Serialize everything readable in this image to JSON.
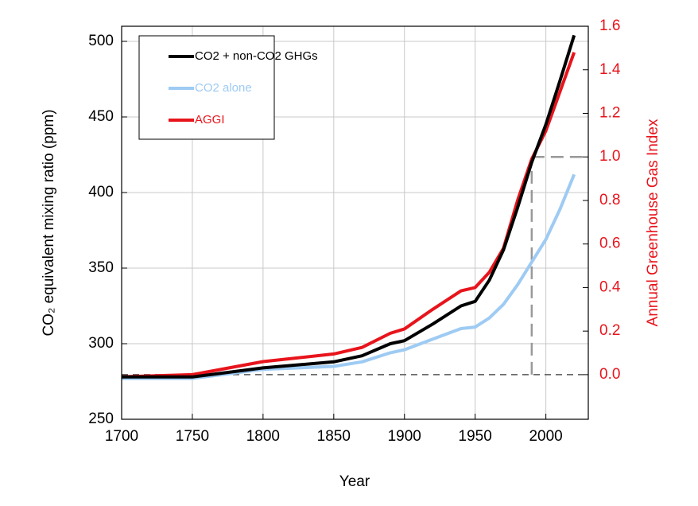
{
  "chart_data": {
    "type": "line",
    "xlabel": "Year",
    "ylabel": "CO₂ equivalent mixing ratio (ppm)",
    "y2label": "Annual Greenhouse Gas Index",
    "x": [
      1700,
      1750,
      1800,
      1850,
      1870,
      1890,
      1900,
      1920,
      1940,
      1950,
      1960,
      1970,
      1980,
      1990,
      2000,
      2010,
      2020
    ],
    "series": [
      {
        "name": "CO2 + non-CO2 GHGs",
        "color": "#000000",
        "values": [
          278,
          278,
          284,
          288,
          292,
          300,
          302,
          313,
          325,
          328,
          342,
          362,
          390,
          420,
          445,
          474,
          504
        ]
      },
      {
        "name": "CO2 alone",
        "color": "#9ecbf3",
        "values": [
          277,
          277,
          283,
          285,
          288,
          294,
          296,
          303,
          310,
          311,
          317,
          326,
          339,
          354,
          369,
          389,
          412
        ]
      },
      {
        "name": "AGGI",
        "color": "#e8141c",
        "axis": "y2",
        "values": [
          -0.01,
          0.0,
          0.06,
          0.095,
          0.125,
          0.19,
          0.21,
          0.3,
          0.385,
          0.4,
          0.47,
          0.58,
          0.8,
          0.99,
          1.12,
          1.3,
          1.48
        ]
      }
    ],
    "xlim": [
      1700,
      2030
    ],
    "xticks": [
      1700,
      1750,
      1800,
      1850,
      1900,
      1950,
      2000
    ],
    "ylim": [
      250,
      510
    ],
    "yticks": [
      250,
      300,
      350,
      400,
      450,
      500
    ],
    "y2lim": [
      -0.205,
      1.6
    ],
    "y2ticks": [
      {
        "value": 0,
        "label": "0.0"
      },
      {
        "value": 0.2,
        "label": "0.2"
      },
      {
        "value": 0.4,
        "label": "0.4"
      },
      {
        "value": 0.6,
        "label": "0.6"
      },
      {
        "value": 0.8,
        "label": "0.8"
      },
      {
        "value": 1.0,
        "label": "1.0"
      },
      {
        "value": 1.2,
        "label": "1.2"
      },
      {
        "value": 1.4,
        "label": "1.4"
      },
      {
        "value": 1.6,
        "label": "1.6"
      }
    ],
    "y2color": "#e8141c",
    "reference_year": 1990,
    "reference_index": 1.0,
    "baseline_index": 0,
    "grid": true,
    "legend": "upper left"
  }
}
